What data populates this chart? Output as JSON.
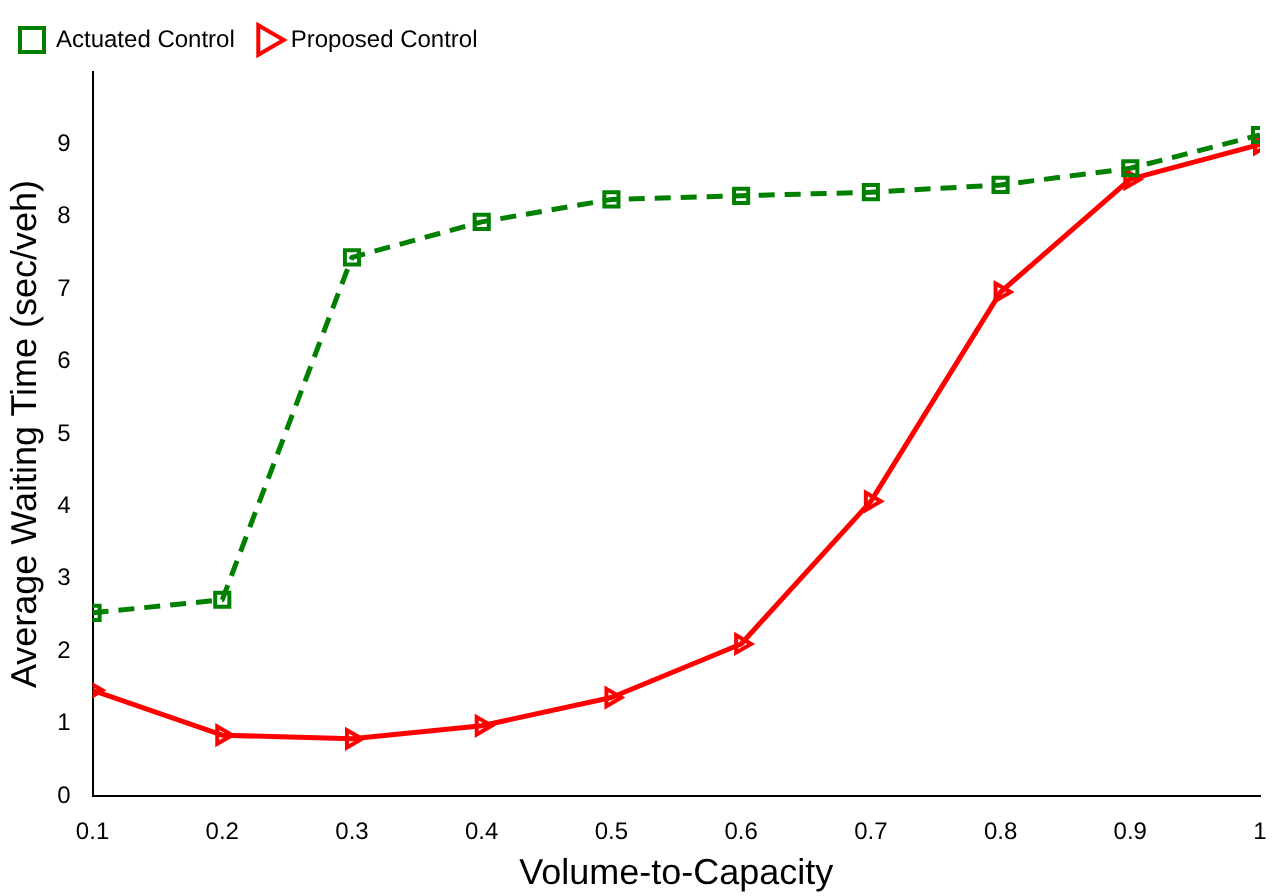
{
  "chart_data": {
    "type": "line",
    "xlabel": "Volume-to-Capacity",
    "ylabel": "Average Waiting Time (sec/veh)",
    "x": [
      0.1,
      0.2,
      0.3,
      0.4,
      0.5,
      0.6,
      0.7,
      0.8,
      0.9,
      1
    ],
    "series": [
      {
        "name": "Actuated Control",
        "color": "#008000",
        "marker": "square",
        "line_style": "dashed",
        "values": [
          2.53,
          2.71,
          7.44,
          7.93,
          8.24,
          8.29,
          8.34,
          8.44,
          8.67,
          9.13
        ]
      },
      {
        "name": "Proposed Control",
        "color": "#ff0000",
        "marker": "triangle",
        "line_style": "solid",
        "values": [
          1.46,
          0.84,
          0.79,
          0.97,
          1.36,
          2.1,
          4.07,
          6.96,
          8.52,
          9.0
        ]
      }
    ],
    "xlim": [
      0.1,
      1
    ],
    "xticks": [
      0.1,
      0.2,
      0.3,
      0.4,
      0.5,
      0.6,
      0.7,
      0.8,
      0.9,
      1
    ],
    "ylim": [
      0,
      10
    ],
    "yticks": [
      0,
      1,
      2,
      3,
      4,
      5,
      6,
      7,
      8,
      9
    ],
    "grid": false,
    "legend": "top left"
  }
}
